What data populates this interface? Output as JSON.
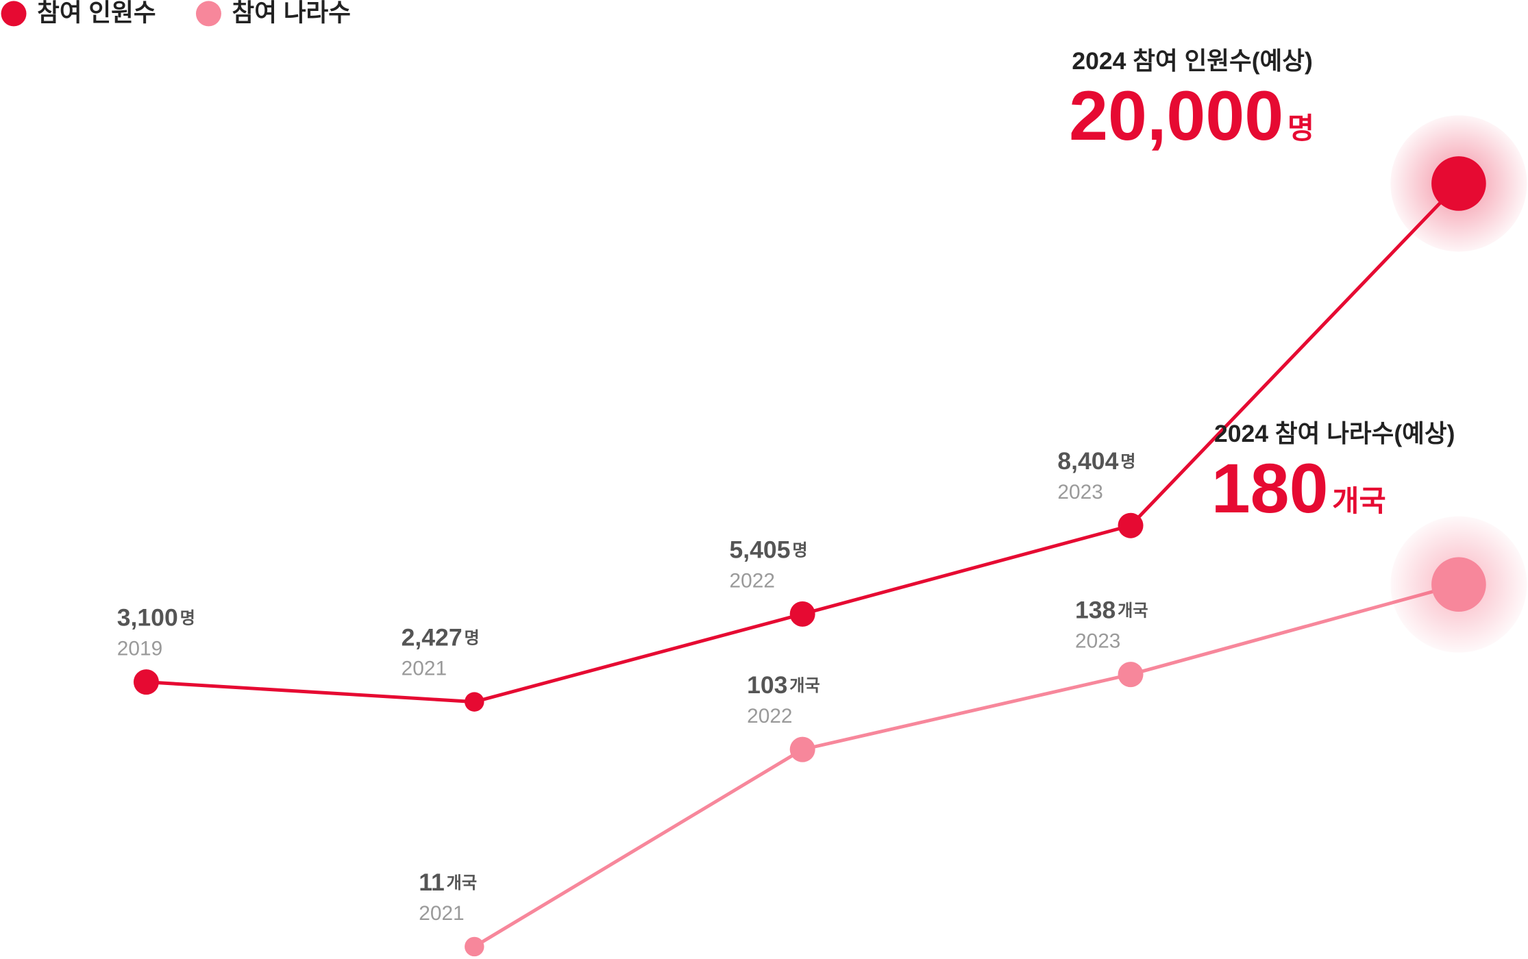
{
  "chart_data": {
    "type": "line",
    "categories": [
      "2019",
      "2021",
      "2022",
      "2023",
      null
    ],
    "ylim": [
      0,
      25000
    ],
    "y2lim": [
      0,
      200
    ],
    "series": [
      {
        "name": "참여 인원수",
        "color": "#e60a32",
        "values": [
          3100,
          2427,
          5405,
          8404,
          20000
        ],
        "value_labels": [
          "3,100",
          "2,427",
          "5,405",
          "8,404",
          "20,000"
        ],
        "unit": "명",
        "callout": "2024 참여 인원수(예상)"
      },
      {
        "name": "참여 나라수",
        "color": "#f7879b",
        "axis": "y2",
        "values": [
          null,
          11,
          103,
          138,
          180
        ],
        "value_labels": [
          null,
          "11",
          "103",
          "138",
          "180"
        ],
        "unit": "개국",
        "callout": "2024 참여 나라수(예상)"
      }
    ]
  }
}
